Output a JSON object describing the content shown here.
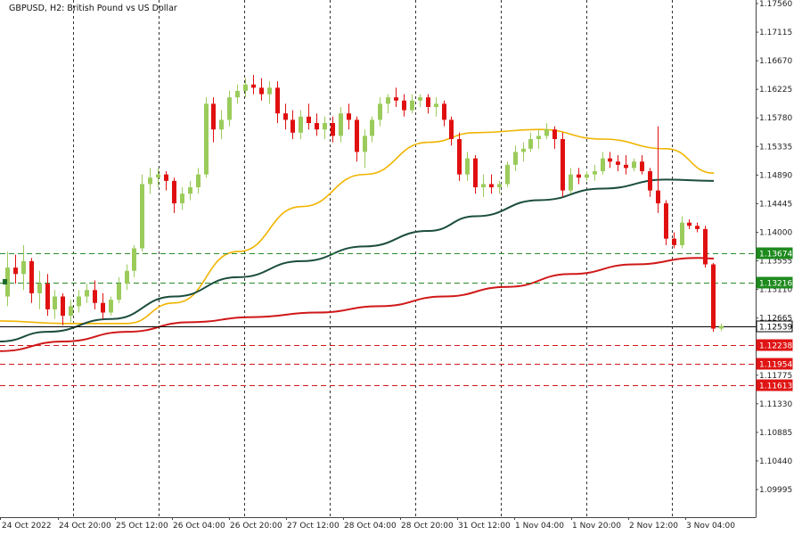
{
  "chart_data": {
    "type": "candlestick",
    "title": "GBPUSD, H2:  British Pound vs US Dollar",
    "ylim": [
      1.0955,
      1.1765
    ],
    "y_ticks": [
      "1.17560",
      "1.17115",
      "1.16670",
      "1.16225",
      "1.15780",
      "1.15335",
      "1.14890",
      "1.14445",
      "1.14000",
      "1.13555",
      "1.13110",
      "1.12665",
      "1.12220",
      "1.11775",
      "1.11330",
      "1.10885",
      "1.10440",
      "1.09995"
    ],
    "x_labels": [
      "24 Oct 2022",
      "24 Oct 20:00",
      "25 Oct 12:00",
      "26 Oct 04:00",
      "26 Oct 20:00",
      "27 Oct 12:00",
      "28 Oct 04:00",
      "28 Oct 20:00",
      "31 Oct 12:00",
      "1 Nov 04:00",
      "1 Nov 20:00",
      "2 Nov 12:00",
      "3 Nov 04:00"
    ],
    "grid": "vertical dashed",
    "colors": {
      "up": "#9bcb5b",
      "down": "#e01010",
      "ma_fast": "#f0b400",
      "ma_mid": "#1b4d3e",
      "ma_slow": "#d01818",
      "support": "#2a8c2a",
      "resistance": "#d01818",
      "current": "#000000"
    },
    "candles": [
      [
        1.13,
        1.137,
        1.1285,
        1.1345
      ],
      [
        1.1345,
        1.1365,
        1.132,
        1.1335
      ],
      [
        1.1335,
        1.138,
        1.131,
        1.1355
      ],
      [
        1.1355,
        1.136,
        1.129,
        1.1305
      ],
      [
        1.1305,
        1.134,
        1.128,
        1.132
      ],
      [
        1.132,
        1.1335,
        1.127,
        1.128
      ],
      [
        1.128,
        1.131,
        1.1265,
        1.13
      ],
      [
        1.13,
        1.1305,
        1.1255,
        1.127
      ],
      [
        1.127,
        1.1295,
        1.126,
        1.1285
      ],
      [
        1.1285,
        1.131,
        1.1275,
        1.13
      ],
      [
        1.13,
        1.132,
        1.129,
        1.131
      ],
      [
        1.131,
        1.1325,
        1.128,
        1.129
      ],
      [
        1.129,
        1.1305,
        1.1265,
        1.1275
      ],
      [
        1.1275,
        1.13,
        1.127,
        1.1295
      ],
      [
        1.1295,
        1.133,
        1.129,
        1.132
      ],
      [
        1.132,
        1.135,
        1.131,
        1.134
      ],
      [
        1.134,
        1.138,
        1.133,
        1.1375
      ],
      [
        1.1375,
        1.149,
        1.137,
        1.1475
      ],
      [
        1.1475,
        1.15,
        1.146,
        1.1485
      ],
      [
        1.1485,
        1.15,
        1.147,
        1.149
      ],
      [
        1.149,
        1.1495,
        1.1465,
        1.148
      ],
      [
        1.148,
        1.1485,
        1.143,
        1.1445
      ],
      [
        1.1445,
        1.147,
        1.1435,
        1.146
      ],
      [
        1.146,
        1.148,
        1.145,
        1.147
      ],
      [
        1.147,
        1.15,
        1.146,
        1.149
      ],
      [
        1.149,
        1.161,
        1.1485,
        1.16
      ],
      [
        1.16,
        1.161,
        1.154,
        1.156
      ],
      [
        1.156,
        1.159,
        1.1545,
        1.1575
      ],
      [
        1.1575,
        1.162,
        1.1565,
        1.161
      ],
      [
        1.161,
        1.163,
        1.16,
        1.162
      ],
      [
        1.162,
        1.164,
        1.161,
        1.163
      ],
      [
        1.163,
        1.1645,
        1.1615,
        1.1625
      ],
      [
        1.1625,
        1.164,
        1.1605,
        1.1615
      ],
      [
        1.1615,
        1.1635,
        1.16,
        1.1625
      ],
      [
        1.1625,
        1.1635,
        1.157,
        1.1585
      ],
      [
        1.1585,
        1.16,
        1.156,
        1.1575
      ],
      [
        1.1575,
        1.159,
        1.1545,
        1.1555
      ],
      [
        1.1555,
        1.159,
        1.1545,
        1.158
      ],
      [
        1.158,
        1.16,
        1.156,
        1.157
      ],
      [
        1.157,
        1.1585,
        1.155,
        1.156
      ],
      [
        1.156,
        1.158,
        1.1545,
        1.157
      ],
      [
        1.157,
        1.158,
        1.154,
        1.155
      ],
      [
        1.155,
        1.1595,
        1.154,
        1.1585
      ],
      [
        1.1585,
        1.16,
        1.156,
        1.1575
      ],
      [
        1.1575,
        1.158,
        1.151,
        1.1525
      ],
      [
        1.1525,
        1.156,
        1.15,
        1.155
      ],
      [
        1.155,
        1.158,
        1.154,
        1.1575
      ],
      [
        1.1575,
        1.161,
        1.1565,
        1.16
      ],
      [
        1.16,
        1.1615,
        1.1585,
        1.161
      ],
      [
        1.161,
        1.1625,
        1.1595,
        1.1605
      ],
      [
        1.1605,
        1.1615,
        1.158,
        1.159
      ],
      [
        1.159,
        1.1615,
        1.1585,
        1.1605
      ],
      [
        1.1605,
        1.1615,
        1.1595,
        1.161
      ],
      [
        1.161,
        1.1615,
        1.1585,
        1.1595
      ],
      [
        1.1595,
        1.161,
        1.158,
        1.16
      ],
      [
        1.16,
        1.1605,
        1.1565,
        1.1575
      ],
      [
        1.1575,
        1.158,
        1.1535,
        1.1545
      ],
      [
        1.1545,
        1.1555,
        1.148,
        1.149
      ],
      [
        1.149,
        1.1525,
        1.148,
        1.1515
      ],
      [
        1.1515,
        1.152,
        1.146,
        1.147
      ],
      [
        1.147,
        1.149,
        1.1455,
        1.1475
      ],
      [
        1.1475,
        1.149,
        1.146,
        1.147
      ],
      [
        1.147,
        1.148,
        1.146,
        1.1475
      ],
      [
        1.1475,
        1.151,
        1.147,
        1.1505
      ],
      [
        1.1505,
        1.1535,
        1.1495,
        1.1525
      ],
      [
        1.1525,
        1.154,
        1.151,
        1.153
      ],
      [
        1.153,
        1.1555,
        1.1525,
        1.1545
      ],
      [
        1.1545,
        1.156,
        1.153,
        1.155
      ],
      [
        1.155,
        1.157,
        1.1545,
        1.156
      ],
      [
        1.156,
        1.1565,
        1.153,
        1.1545
      ],
      [
        1.1545,
        1.1555,
        1.1455,
        1.1465
      ],
      [
        1.1465,
        1.15,
        1.146,
        1.149
      ],
      [
        1.149,
        1.15,
        1.1475,
        1.1485
      ],
      [
        1.1485,
        1.1495,
        1.148,
        1.149
      ],
      [
        1.149,
        1.1505,
        1.148,
        1.1495
      ],
      [
        1.1495,
        1.1525,
        1.149,
        1.1515
      ],
      [
        1.1515,
        1.1525,
        1.15,
        1.151
      ],
      [
        1.151,
        1.152,
        1.1495,
        1.1505
      ],
      [
        1.1505,
        1.152,
        1.149,
        1.15
      ],
      [
        1.15,
        1.1515,
        1.1495,
        1.151
      ],
      [
        1.151,
        1.152,
        1.149,
        1.1495
      ],
      [
        1.1495,
        1.15,
        1.1455,
        1.1465
      ],
      [
        1.1465,
        1.1565,
        1.143,
        1.1445
      ],
      [
        1.1445,
        1.145,
        1.138,
        1.139
      ],
      [
        1.139,
        1.14,
        1.1375,
        1.138
      ],
      [
        1.138,
        1.1425,
        1.1375,
        1.1415
      ],
      [
        1.1415,
        1.142,
        1.1405,
        1.141
      ],
      [
        1.141,
        1.1415,
        1.14,
        1.1405
      ],
      [
        1.1405,
        1.141,
        1.1345,
        1.135
      ],
      [
        1.135,
        1.1352,
        1.1245,
        1.125
      ],
      [
        1.125,
        1.1258,
        1.1246,
        1.1254
      ]
    ],
    "moving_averages": {
      "fast": [
        [
          0,
          1.1262
        ],
        [
          8,
          1.1258
        ],
        [
          16,
          1.1258
        ],
        [
          22,
          1.129
        ],
        [
          30,
          1.137
        ],
        [
          38,
          1.144
        ],
        [
          46,
          1.149
        ],
        [
          54,
          1.154
        ],
        [
          60,
          1.1555
        ],
        [
          68,
          1.156
        ],
        [
          76,
          1.1545
        ],
        [
          84,
          1.153
        ],
        [
          90,
          1.1492
        ]
      ],
      "mid": [
        [
          0,
          1.123
        ],
        [
          6,
          1.1245
        ],
        [
          14,
          1.1265
        ],
        [
          22,
          1.13
        ],
        [
          30,
          1.133
        ],
        [
          38,
          1.1355
        ],
        [
          46,
          1.1378
        ],
        [
          54,
          1.1402
        ],
        [
          60,
          1.1425
        ],
        [
          68,
          1.145
        ],
        [
          76,
          1.1468
        ],
        [
          84,
          1.1482
        ],
        [
          90,
          1.148
        ]
      ],
      "slow": [
        [
          0,
          1.1215
        ],
        [
          8,
          1.123
        ],
        [
          16,
          1.1245
        ],
        [
          24,
          1.126
        ],
        [
          32,
          1.1268
        ],
        [
          40,
          1.1275
        ],
        [
          48,
          1.1285
        ],
        [
          56,
          1.13
        ],
        [
          64,
          1.1315
        ],
        [
          72,
          1.1335
        ],
        [
          80,
          1.135
        ],
        [
          88,
          1.136
        ],
        [
          90,
          1.1359
        ]
      ]
    },
    "levels": [
      {
        "label": "1.13674",
        "value": 1.13674,
        "kind": "support"
      },
      {
        "label": "1.13216",
        "value": 1.13216,
        "kind": "support"
      },
      {
        "label": "1.12539",
        "value": 1.12539,
        "kind": "current"
      },
      {
        "label": "1.12238",
        "value": 1.12238,
        "kind": "resistance"
      },
      {
        "label": "1.11954",
        "value": 1.11954,
        "kind": "resistance"
      },
      {
        "label": "1.11613",
        "value": 1.11613,
        "kind": "resistance"
      }
    ]
  }
}
